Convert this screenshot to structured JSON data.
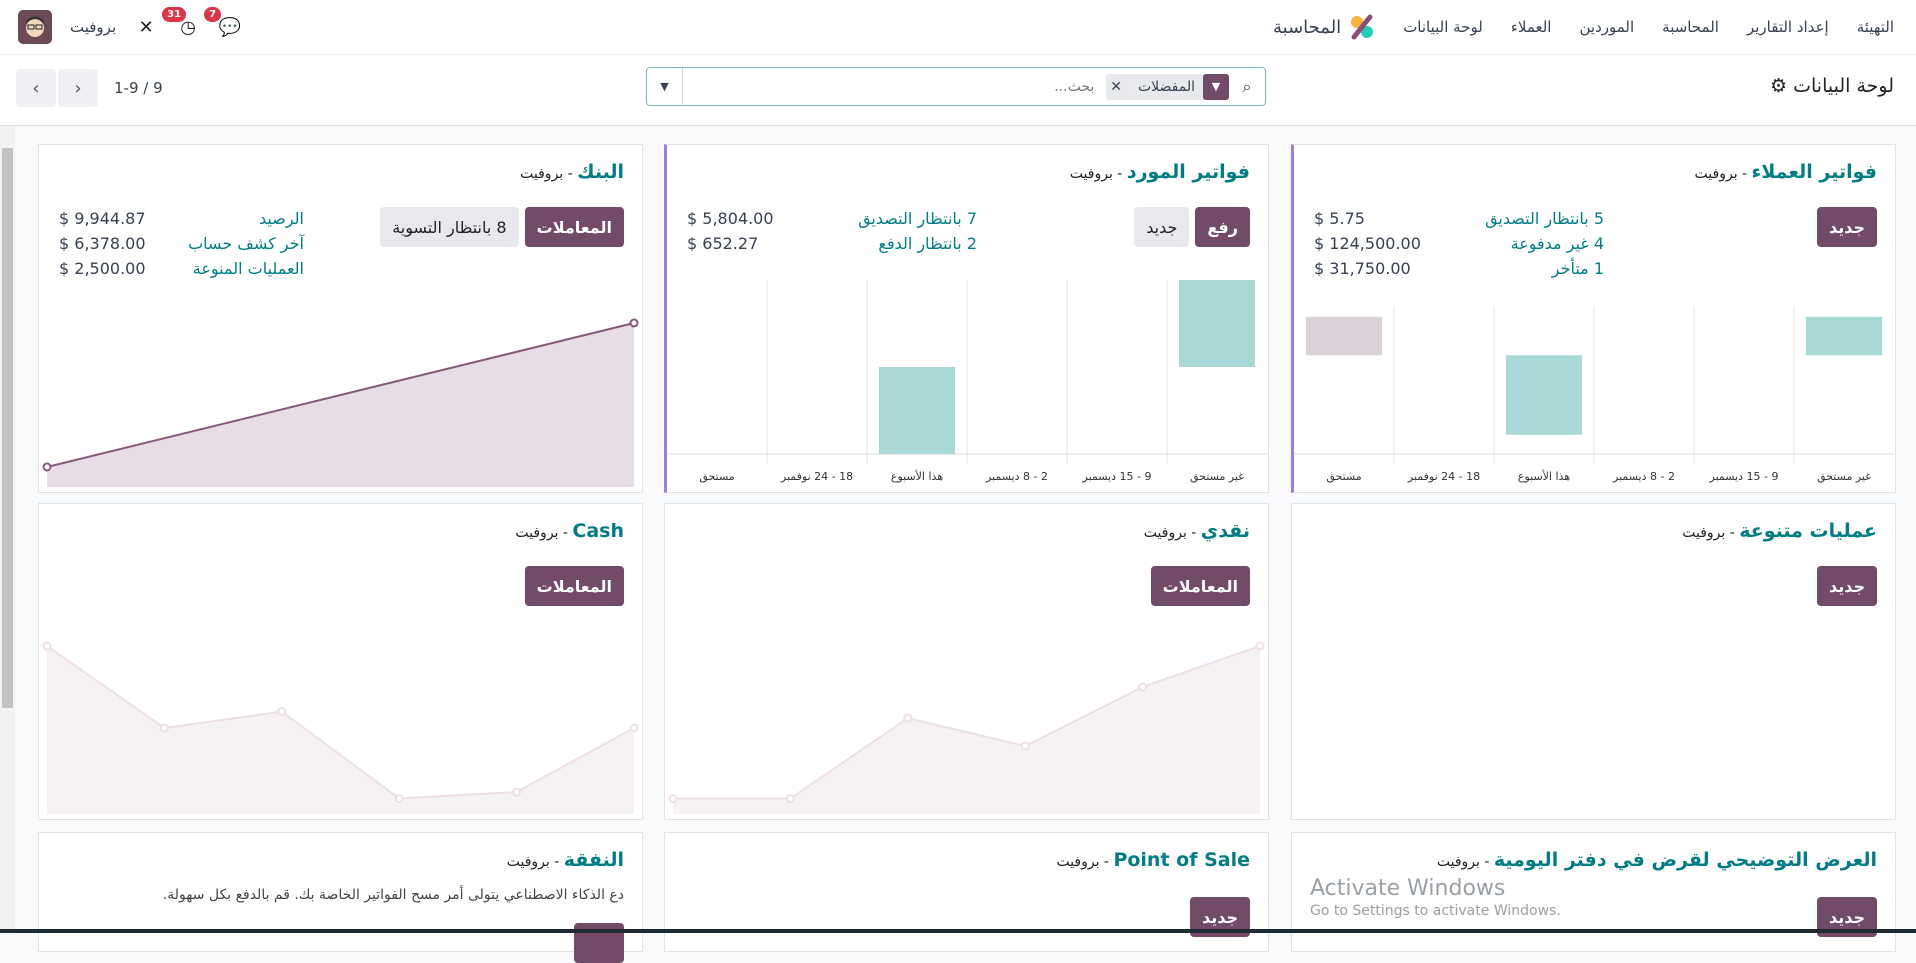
{
  "topbar": {
    "app_name": "المحاسبة",
    "menu": [
      "لوحة البيانات",
      "العملاء",
      "الموردين",
      "المحاسبة",
      "إعداد التقارير",
      "التهيئة"
    ],
    "user": "بروفيت",
    "activity_count": "31",
    "message_count": "7"
  },
  "control": {
    "title": "لوحة البيانات",
    "search_placeholder": "بحث...",
    "facet": "المفضلات",
    "pager": "1-9 / 9"
  },
  "cards": {
    "customer": {
      "title": "فواتير العملاء",
      "company": " - بروفيت",
      "new": "جديد",
      "stats": [
        [
          "5 بانتظار التصديق",
          "$ 5.75"
        ],
        [
          "4 غير مدفوعة",
          "$ 124,500.00"
        ],
        [
          "1 متأخر",
          "$ 31,750.00"
        ]
      ]
    },
    "supplier": {
      "title": "فواتير المورد",
      "company": " - بروفيت",
      "upload": "رفع",
      "new": "جديد",
      "stats": [
        [
          "7 بانتظار التصديق",
          "$ 5,804.00"
        ],
        [
          "2 بانتظار الدفع",
          "$ 652.27"
        ]
      ]
    },
    "bank": {
      "title": "البنك",
      "company": " - بروفيت",
      "transactions": "المعاملات",
      "to_reconcile": "8 بانتظار التسوية",
      "stats": [
        [
          "الرصيد",
          "$ 9,944.87"
        ],
        [
          "آخر كشف حساب",
          "$ 6,378.00"
        ],
        [
          "العمليات المنوعة",
          "$ 2,500.00"
        ]
      ]
    },
    "misc": {
      "title": "عمليات متنوعة",
      "company": " - بروفيت",
      "new": "جديد"
    },
    "naqdi": {
      "title": "نقدي",
      "company": " - بروفيت",
      "transactions": "المعاملات"
    },
    "cash": {
      "title": "Cash",
      "company": " - بروفيت",
      "transactions": "المعاملات"
    },
    "demo": {
      "title": "العرض التوضيحي لقرض في دفتر اليومية",
      "company": " - بروفيت",
      "new": "جديد"
    },
    "pos": {
      "title": "Point of Sale",
      "company": " - بروفيت",
      "new": "جديد"
    },
    "expense": {
      "title": "النفقة",
      "company": " - بروفيت",
      "description": "دع الذكاء الاصطناعي يتولى أمر مسح الفواتير الخاصة بك. قم بالدفع بكل سهولة."
    }
  },
  "chart_data": [
    {
      "id": "customer",
      "type": "bar",
      "categories": [
        "غير مستحق",
        "9 - 15 ديسمبر",
        "2 - 8 ديسمبر",
        "هذا الأسبوع",
        "18 - 24 نوفمبر",
        "مستحق"
      ],
      "ranges": [
        [
          66.7,
          92.7
        ],
        null,
        null,
        [
          13,
          66.7
        ],
        null,
        [
          66.7,
          92.7
        ]
      ],
      "colors": [
        "#a8d9d7",
        "#a8d9d7",
        "#a8d9d7",
        "#a8d9d7",
        "#a8d9d7",
        "#dcd2da"
      ],
      "ylim": [
        0,
        100
      ]
    },
    {
      "id": "supplier",
      "type": "bar",
      "categories": [
        "غير مستحق",
        "9 - 15 ديسمبر",
        "2 - 8 ديسمبر",
        "هذا الأسبوع",
        "18 - 24 نوفمبر",
        "مستحق"
      ],
      "ranges": [
        [
          50,
          100
        ],
        null,
        null,
        [
          0,
          50
        ],
        null,
        null
      ],
      "colors": [
        "#a8d9d7",
        "#a8d9d7",
        "#a8d9d7",
        "#a8d9d7",
        "#a8d9d7",
        "#dcd2da"
      ],
      "ylim": [
        0,
        100
      ]
    },
    {
      "id": "bank",
      "type": "area",
      "values": [
        10,
        100
      ],
      "ylim": [
        0,
        100
      ],
      "line": "#86597b",
      "fill": "#e7dde5"
    },
    {
      "id": "cash",
      "type": "area",
      "values": [
        100,
        50,
        60,
        7,
        11,
        50
      ],
      "ylim": [
        0,
        100
      ],
      "line": "#eedfe4",
      "fill": "#f6f1f3"
    },
    {
      "id": "naqdi",
      "type": "area",
      "values": [
        7,
        7,
        56,
        39,
        75,
        100
      ],
      "ylim": [
        0,
        100
      ],
      "line": "#eedfe4",
      "fill": "#f6f1f3"
    }
  ],
  "watermark": {
    "line1": "Activate Windows",
    "line2": "Go to Settings to activate Windows."
  }
}
